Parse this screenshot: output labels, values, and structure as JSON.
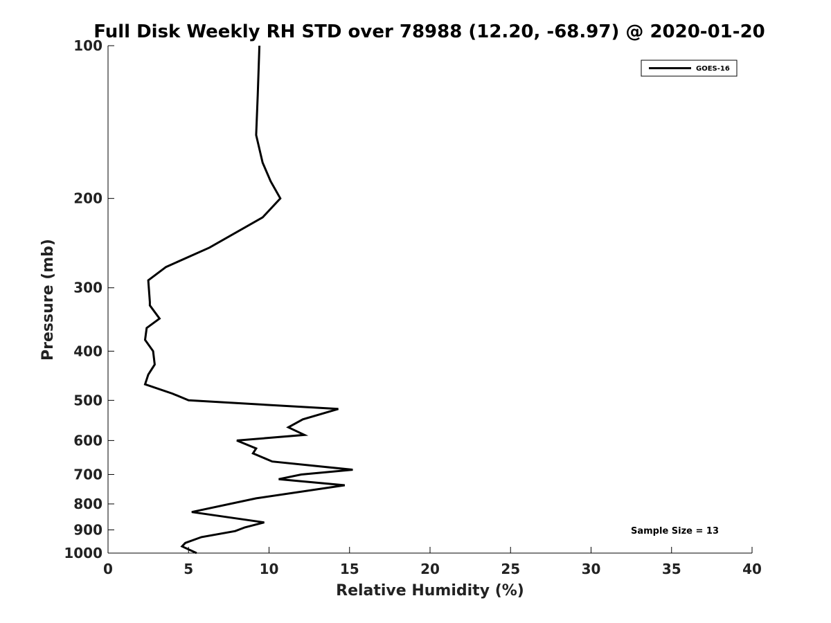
{
  "chart_data": {
    "type": "line",
    "title": "Full Disk Weekly RH STD over 78988 (12.20, -68.97) @ 2020-01-20",
    "xlabel": "Relative Humidity (%)",
    "ylabel": "Pressure (mb)",
    "xlim": [
      0,
      40
    ],
    "ylim": [
      1000,
      100
    ],
    "y_scale": "log",
    "x_ticks": [
      "0",
      "5",
      "10",
      "15",
      "20",
      "25",
      "30",
      "35",
      "40"
    ],
    "y_ticks": [
      "100",
      "200",
      "300",
      "400",
      "500",
      "600",
      "700",
      "800",
      "900",
      "1000"
    ],
    "grid": false,
    "legend_position": "top-right",
    "annotation": "Sample Size = 13",
    "series": [
      {
        "name": "GOES-16",
        "color": "#000000",
        "points": [
          [
            9.4,
            100
          ],
          [
            9.3,
            125
          ],
          [
            9.2,
            150
          ],
          [
            9.6,
            170
          ],
          [
            10.1,
            185
          ],
          [
            10.7,
            200
          ],
          [
            9.6,
            218
          ],
          [
            6.3,
            250
          ],
          [
            3.6,
            273
          ],
          [
            2.5,
            290
          ],
          [
            2.6,
            320
          ],
          [
            2.6,
            325
          ],
          [
            3.2,
            345
          ],
          [
            2.4,
            360
          ],
          [
            2.3,
            380
          ],
          [
            2.8,
            400
          ],
          [
            2.9,
            425
          ],
          [
            2.5,
            445
          ],
          [
            2.3,
            465
          ],
          [
            4.0,
            485
          ],
          [
            5.0,
            500
          ],
          [
            14.3,
            520
          ],
          [
            12.1,
            545
          ],
          [
            11.2,
            565
          ],
          [
            12.2,
            585
          ],
          [
            8.0,
            600
          ],
          [
            9.2,
            622
          ],
          [
            9.0,
            636
          ],
          [
            10.2,
            660
          ],
          [
            15.2,
            685
          ],
          [
            12.0,
            700
          ],
          [
            10.6,
            715
          ],
          [
            14.7,
            735
          ],
          [
            9.2,
            780
          ],
          [
            5.2,
            830
          ],
          [
            9.7,
            870
          ],
          [
            8.5,
            890
          ],
          [
            7.9,
            905
          ],
          [
            5.8,
            930
          ],
          [
            4.8,
            955
          ],
          [
            4.6,
            970
          ],
          [
            5.5,
            1000
          ]
        ]
      }
    ]
  }
}
